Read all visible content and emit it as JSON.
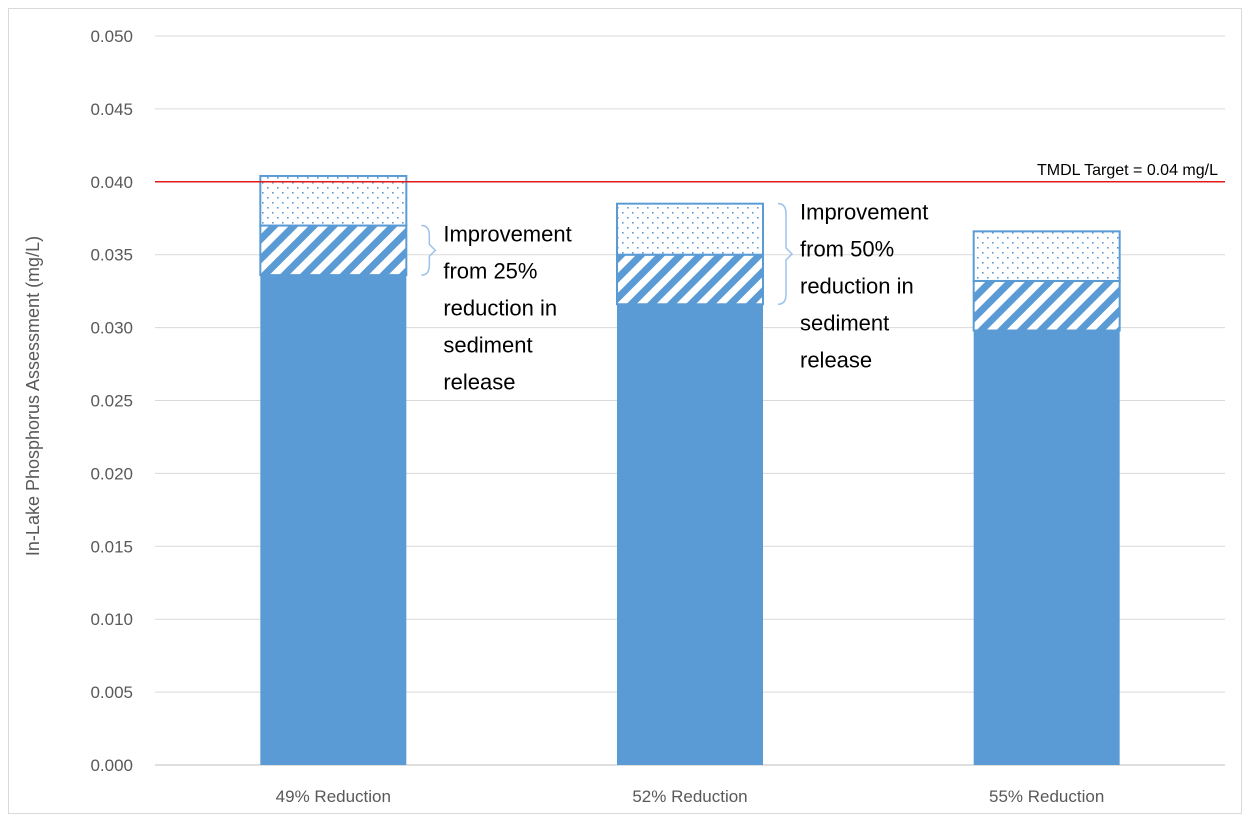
{
  "chart_data": {
    "type": "bar",
    "stacked": true,
    "categories": [
      "49% Reduction",
      "52% Reduction",
      "55% Reduction"
    ],
    "series": [
      {
        "pattern": "solid",
        "values": [
          0.0336,
          0.0316,
          0.0298
        ]
      },
      {
        "pattern": "diagonal",
        "values": [
          0.0034,
          0.0034,
          0.0034
        ]
      },
      {
        "pattern": "dotted",
        "values": [
          0.0034,
          0.0035,
          0.0034
        ]
      }
    ],
    "ylabel": "In-Lake Phosphorus Assessment (mg/L)",
    "ylim": [
      0,
      0.05
    ],
    "yticks": [
      "0.000",
      "0.005",
      "0.010",
      "0.015",
      "0.020",
      "0.025",
      "0.030",
      "0.035",
      "0.040",
      "0.045",
      "0.050"
    ],
    "grid": true,
    "reference_line": {
      "value": 0.04,
      "label": "TMDL Target = 0.04 mg/L",
      "color": "#e31a1c"
    },
    "annotations": [
      {
        "category": "49% Reduction",
        "lines": [
          "Improvement",
          "from 25%",
          "reduction in",
          "sediment",
          "release"
        ],
        "y_from": 0.0336,
        "y_to": 0.037
      },
      {
        "category": "52% Reduction",
        "lines": [
          "Improvement",
          "from 50%",
          "reduction in",
          "sediment",
          "release"
        ],
        "y_from": 0.0316,
        "y_to": 0.0385
      }
    ],
    "colors": {
      "bar": "#5b9bd5",
      "grid": "#d9d9d9",
      "text": "#595959"
    }
  }
}
